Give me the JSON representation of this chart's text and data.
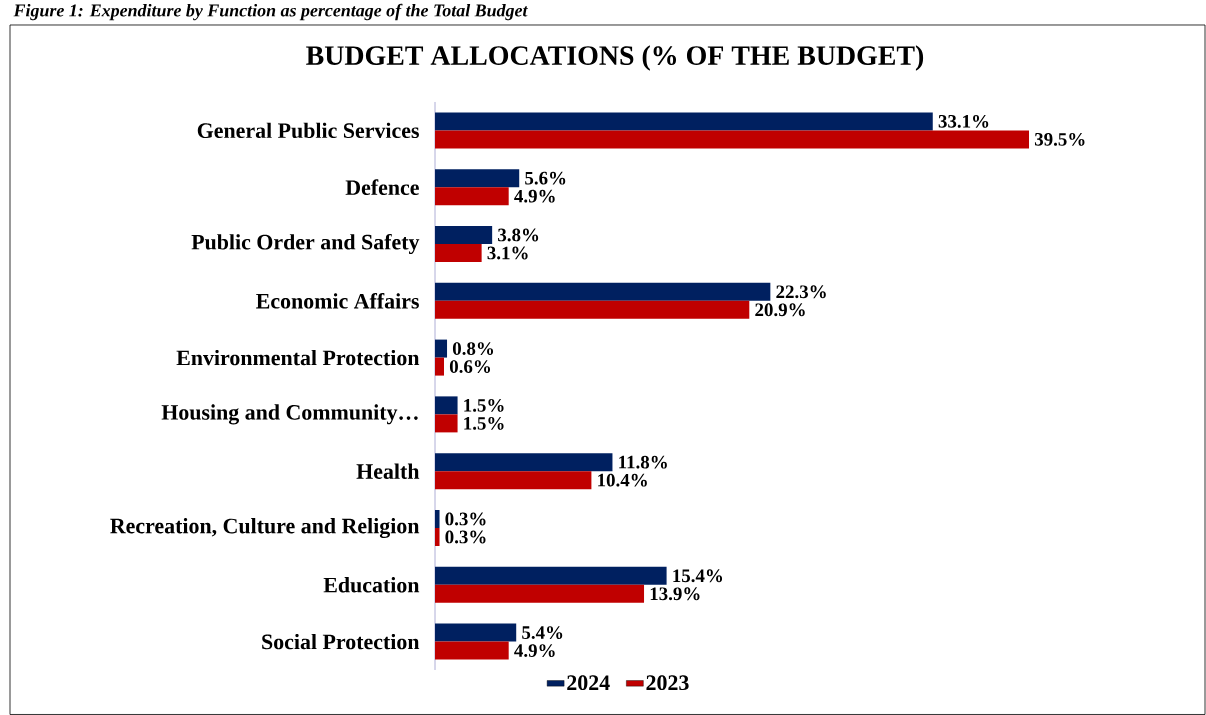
{
  "chart_data": {
    "type": "bar",
    "orientation": "horizontal",
    "title": "BUDGET ALLOCATIONS (% OF THE BUDGET)",
    "annotations": [
      "Figure 1: Expenditure by Function as percentage of the Total Budget"
    ],
    "categories": [
      "General Public Services",
      "Defence",
      "Public Order and Safety",
      "Economic Affairs",
      "Environmental Protection",
      "Housing and Community…",
      "Health",
      "Recreation, Culture and Religion",
      "Education",
      "Social Protection"
    ],
    "legend": "bottom",
    "series": [
      {
        "name": "2024",
        "color": "#002060",
        "values": [
          33.1,
          5.6,
          3.8,
          22.3,
          0.8,
          1.5,
          11.8,
          0.3,
          15.4,
          5.4
        ],
        "value_labels": [
          "33.1%",
          "5.6%",
          "3.8%",
          "22.3%",
          "0.8%",
          "1.5%",
          "11.8%",
          "0.3%",
          "15.4%",
          "5.4%"
        ]
      },
      {
        "name": "2023",
        "color": "#c00000",
        "values": [
          39.5,
          4.9,
          3.1,
          20.9,
          0.6,
          1.5,
          10.4,
          0.3,
          13.9,
          4.9
        ],
        "value_labels": [
          "39.5%",
          "4.9%",
          "3.1%",
          "20.9%",
          "0.6%",
          "1.5%",
          "10.4%",
          "0.3%",
          "13.9%",
          "4.9%"
        ]
      }
    ]
  }
}
